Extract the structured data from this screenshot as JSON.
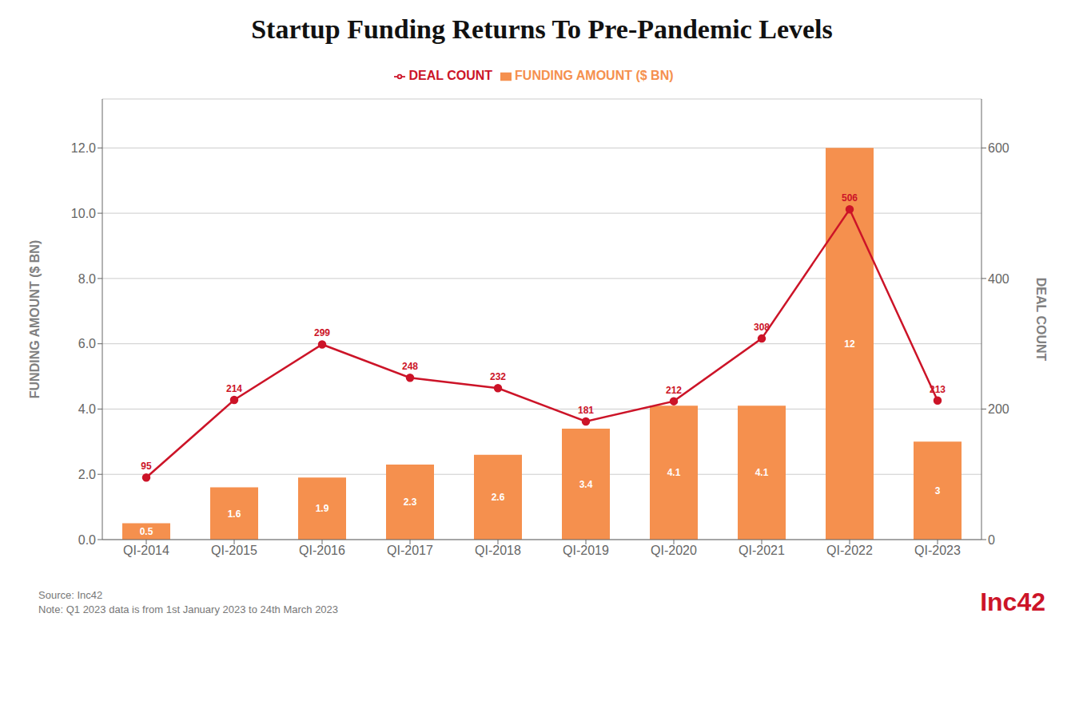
{
  "chart_data": {
    "type": "bar",
    "title": "Startup Funding Returns To Pre-Pandemic Levels",
    "categories": [
      "QI-2014",
      "QI-2015",
      "QI-2016",
      "QI-2017",
      "QI-2018",
      "QI-2019",
      "QI-2020",
      "QI-2021",
      "QI-2022",
      "QI-2023"
    ],
    "series": [
      {
        "name": "FUNDING AMOUNT ($ BN)",
        "type": "bar",
        "color": "#F5904E",
        "values": [
          0.5,
          1.6,
          1.9,
          2.3,
          2.6,
          3.4,
          4.1,
          4.1,
          12,
          3.0
        ]
      },
      {
        "name": "DEAL COUNT",
        "type": "line",
        "axis": "y2",
        "color": "#CC1428",
        "marker": "circle",
        "line_style": "solid",
        "values": [
          95,
          214,
          299,
          248,
          232,
          181,
          212,
          308,
          506,
          213
        ]
      }
    ],
    "ylabel": "FUNDING AMOUNT ($ BN)",
    "y2label": "DEAL COUNT",
    "ylim": [
      0,
      13.5
    ],
    "yticks": [
      {
        "value": 0,
        "label": "0.0"
      },
      {
        "value": 2,
        "label": "2.0"
      },
      {
        "value": 4,
        "label": "4.0"
      },
      {
        "value": 6,
        "label": "6.0"
      },
      {
        "value": 8,
        "label": "8.0"
      },
      {
        "value": 10,
        "label": "10.0"
      },
      {
        "value": 12,
        "label": "12.0"
      }
    ],
    "y2lim": [
      0,
      675
    ],
    "y2ticks": [
      0,
      200,
      400,
      600
    ],
    "grid": true,
    "legend": "top",
    "data_labels": true,
    "annotations": [
      "Source: Inc42",
      "Note: Q1 2023 data is from 1st January 2023 to 24th March 2023",
      "Inc42"
    ]
  }
}
